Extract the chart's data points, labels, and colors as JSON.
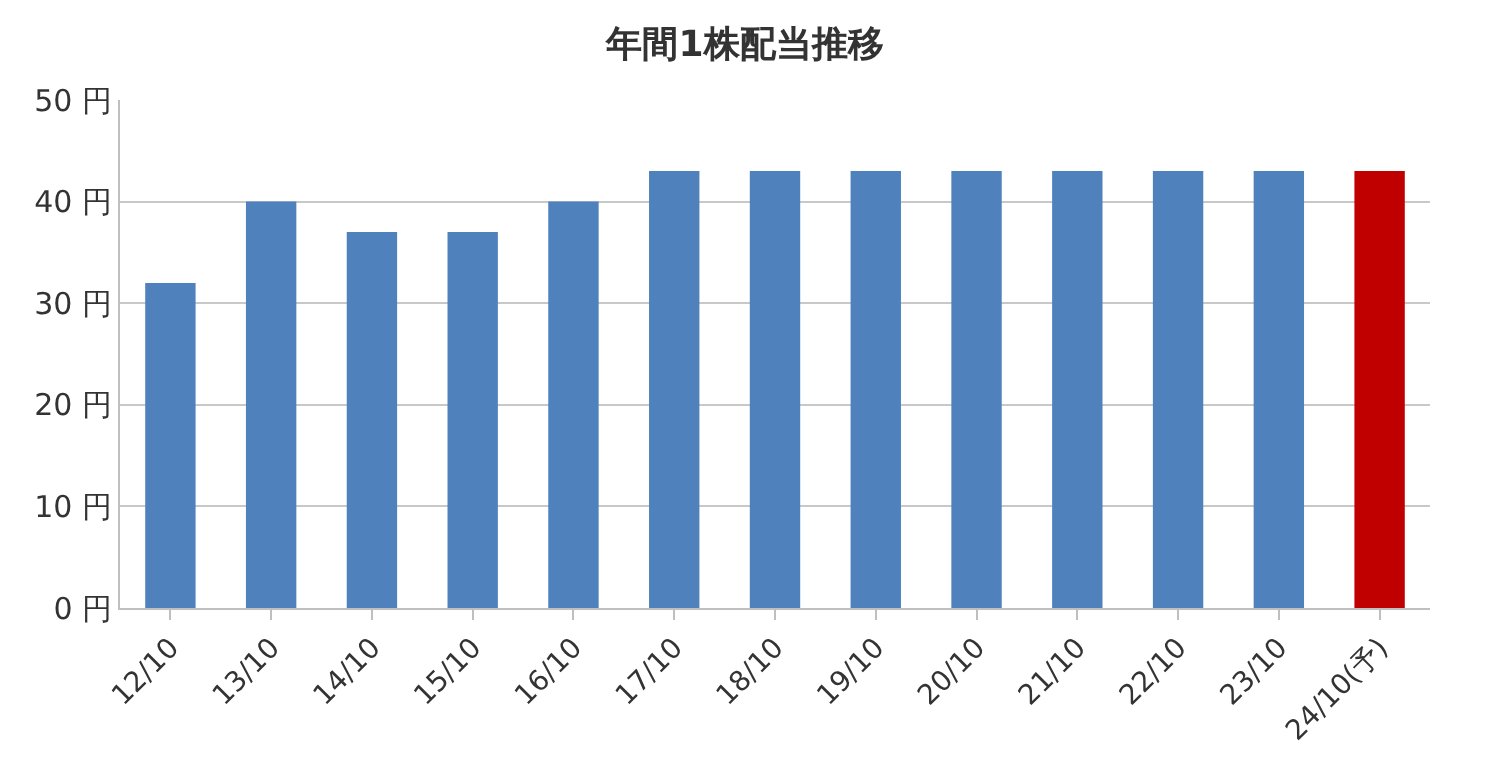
{
  "chart_data": {
    "type": "bar",
    "title": "年間1株配当推移",
    "categories": [
      "12/10",
      "13/10",
      "14/10",
      "15/10",
      "16/10",
      "17/10",
      "18/10",
      "19/10",
      "20/10",
      "21/10",
      "22/10",
      "23/10",
      "24/10(予)"
    ],
    "values": [
      32,
      40,
      37,
      37,
      40,
      43,
      43,
      43,
      43,
      43,
      43,
      43,
      43
    ],
    "colors": [
      "#4f81bd",
      "#4f81bd",
      "#4f81bd",
      "#4f81bd",
      "#4f81bd",
      "#4f81bd",
      "#4f81bd",
      "#4f81bd",
      "#4f81bd",
      "#4f81bd",
      "#4f81bd",
      "#4f81bd",
      "#c00000"
    ],
    "ylim": [
      0,
      50
    ],
    "yticks": [
      {
        "value": 0,
        "label": "0 円"
      },
      {
        "value": 10,
        "label": "10 円"
      },
      {
        "value": 20,
        "label": "20 円"
      },
      {
        "value": 30,
        "label": "30 円"
      },
      {
        "value": 40,
        "label": "40 円"
      },
      {
        "value": 50,
        "label": "50 円"
      }
    ],
    "grid": "y"
  }
}
